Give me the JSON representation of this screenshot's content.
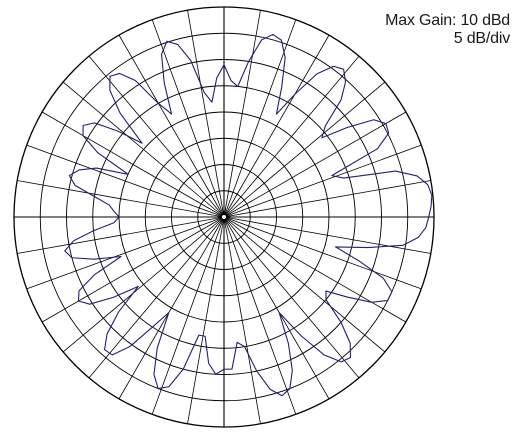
{
  "chart_data": {
    "type": "polar",
    "title": "",
    "annotations": {
      "max_gain": "Max Gain: 10 dBd",
      "scale": "5 dB/div"
    },
    "max_gain_dbd": 10,
    "scale_db_per_div": 5,
    "radial_divisions": 8,
    "radial_range_db": [
      -30,
      10
    ],
    "angular_step_deg": 10,
    "grid": true,
    "grid_color": "#000000",
    "trace_color": "#1f1f7a",
    "series": [
      {
        "angles_deg": [
          0,
          3,
          6,
          9,
          12,
          15,
          18,
          21,
          24,
          27,
          30,
          33,
          36,
          39,
          42,
          45,
          48,
          51,
          54,
          57,
          60,
          63,
          66,
          69,
          72,
          75,
          78,
          81,
          84,
          87,
          90,
          93,
          96,
          99,
          102,
          105,
          108,
          111,
          114,
          117,
          120,
          123,
          126,
          129,
          132,
          135,
          138,
          141,
          144,
          147,
          150,
          153,
          156,
          159,
          162,
          165,
          168,
          171,
          174,
          177,
          180,
          183,
          186,
          189,
          192,
          195,
          198,
          201,
          204,
          207,
          210,
          213,
          216,
          219,
          222,
          225,
          228,
          231,
          234,
          237,
          240,
          243,
          246,
          249,
          252,
          255,
          258,
          261,
          264,
          267,
          270,
          273,
          276,
          279,
          282,
          285,
          288,
          291,
          294,
          297,
          300,
          303,
          306,
          309,
          312,
          315,
          318,
          321,
          324,
          327,
          330,
          333,
          336,
          339,
          342,
          345,
          348,
          351,
          354,
          357
        ],
        "gain_db": [
          9.0,
          9.5,
          9.8,
          9.3,
          7.6,
          3.8,
          -6.0,
          -8.0,
          2.0,
          5.2,
          5.6,
          4.0,
          -1.0,
          -6.0,
          -4.0,
          1.5,
          4.6,
          6.2,
          5.5,
          2.5,
          -3.0,
          -8.0,
          -3.0,
          2.5,
          5.4,
          6.0,
          4.5,
          0.0,
          -5.0,
          -4.0,
          -1.0,
          -3.5,
          -8.0,
          -6.0,
          0.5,
          4.0,
          5.2,
          3.2,
          -2.0,
          -8.0,
          -5.0,
          1.0,
          3.8,
          4.5,
          2.5,
          -2.0,
          -9.0,
          -4.0,
          0.5,
          2.0,
          1.0,
          -3.0,
          -10.0,
          -4.0,
          -1.0,
          0.5,
          -1.0,
          -5.0,
          -8.0,
          -9.0,
          -10.0,
          -9.0,
          -5.0,
          -1.0,
          1.0,
          0.0,
          -4.0,
          -9.0,
          -3.0,
          1.0,
          2.0,
          0.5,
          -4.0,
          -9.0,
          -3.0,
          1.5,
          4.0,
          3.8,
          0.5,
          -5.0,
          -9.0,
          -2.0,
          2.8,
          5.0,
          4.0,
          0.0,
          -7.0,
          -7.0,
          -2.0,
          0.0,
          -1.0,
          -1.0,
          -6.0,
          -5.0,
          0.0,
          4.0,
          5.8,
          5.0,
          2.0,
          -3.0,
          -9.0,
          -3.0,
          2.5,
          5.5,
          6.0,
          4.0,
          0.0,
          -5.0,
          -6.0,
          -2.0,
          2.5,
          5.0,
          5.0,
          2.5,
          -3.0,
          -8.0,
          -2.0,
          4.5,
          7.2,
          8.5
        ]
      }
    ]
  }
}
